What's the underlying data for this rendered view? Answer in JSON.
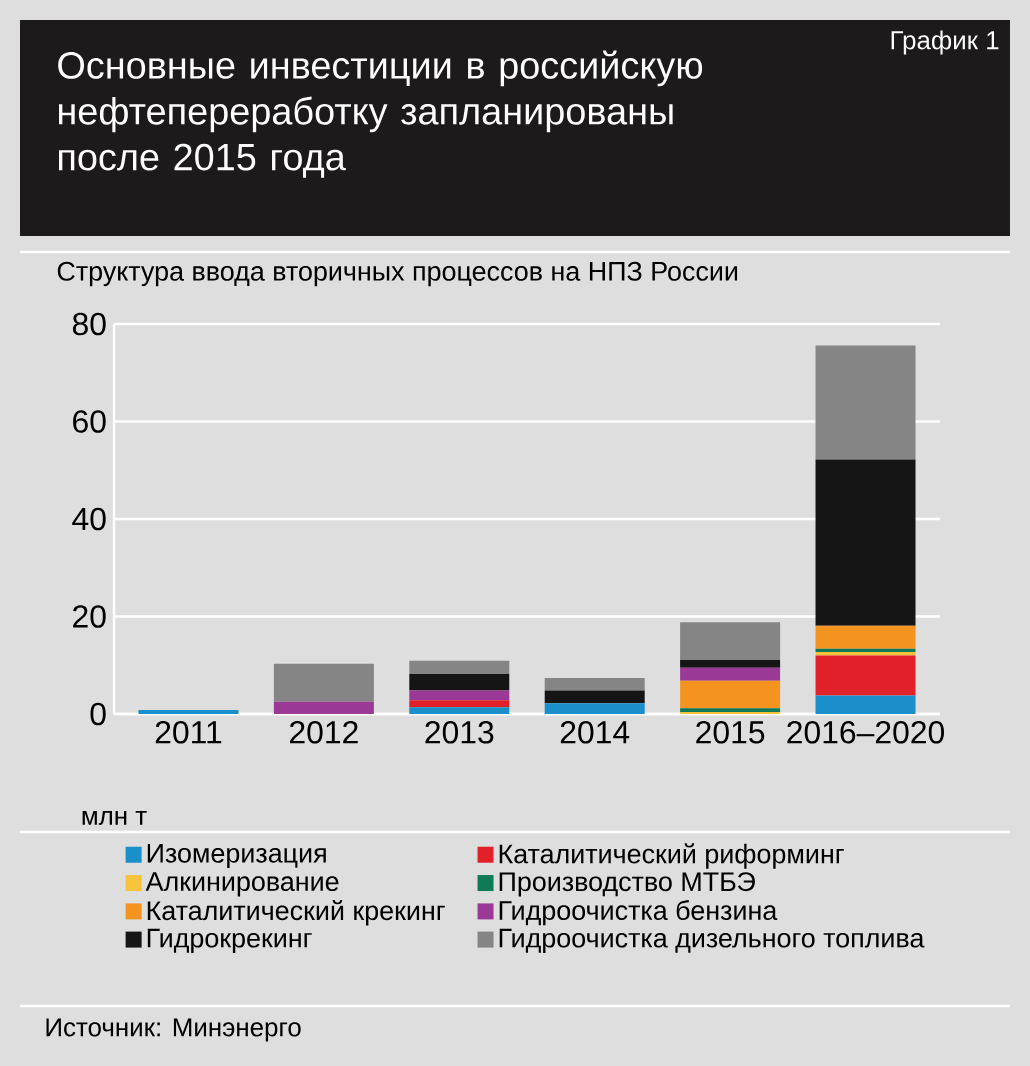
{
  "chart_data": {
    "type": "bar",
    "title": "Основные инвестиции в российскую нефтепереработку запланированы после 2015 года",
    "subtitle": "Структура ввода вторичных процессов на НПЗ России",
    "ylabel": "млн т",
    "annotations": [
      "График 1",
      "Источник: Минэнерго"
    ],
    "categories": [
      "2011",
      "2012",
      "2013",
      "2014",
      "2015",
      "2016–2020"
    ],
    "stacked": true,
    "series": [
      {
        "name": "Изомеризация",
        "color": "#1a8fc9",
        "values": [
          0.8,
          0,
          1.4,
          2.2,
          0,
          3.8
        ]
      },
      {
        "name": "Каталитический риформинг",
        "color": "#e2202a",
        "values": [
          0,
          0,
          1.4,
          0,
          0,
          8.2
        ]
      },
      {
        "name": "Алкинирование",
        "color": "#f7c23c",
        "values": [
          0,
          0,
          0,
          0,
          0.4,
          0.7
        ]
      },
      {
        "name": "Производство МТБЭ",
        "color": "#0f7a55",
        "values": [
          0,
          0,
          0,
          0,
          0.8,
          0.7
        ]
      },
      {
        "name": "Каталитический крекинг",
        "color": "#f39320",
        "values": [
          0,
          0,
          0,
          0,
          5.6,
          4.7
        ]
      },
      {
        "name": "Гидроочистка бензина",
        "color": "#9b3a96",
        "values": [
          0,
          2.5,
          2,
          0,
          2.7,
          0
        ]
      },
      {
        "name": "Гидрокрекинг",
        "color": "#151515",
        "values": [
          0,
          0,
          3.4,
          2.6,
          1.6,
          34.1
        ]
      },
      {
        "name": "Гидроочистка дизельного топлива",
        "color": "#858585",
        "values": [
          0,
          7.8,
          2.7,
          2.6,
          7.7,
          23.4
        ]
      }
    ],
    "ylim": [
      0,
      80
    ],
    "yticks": [
      0,
      20,
      40,
      60,
      80
    ],
    "grid": "y",
    "legend": "bottom"
  }
}
